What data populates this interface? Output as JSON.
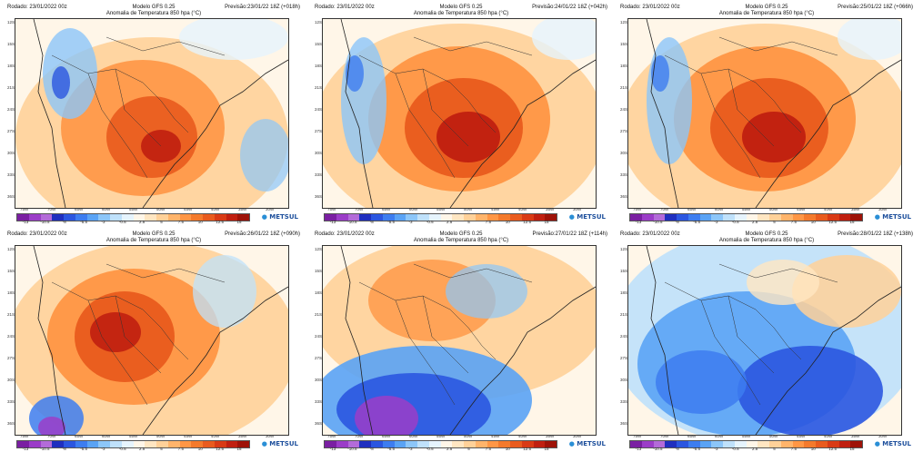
{
  "header": {
    "rodado": "Rodado: 23/01/2022 00z",
    "modelo": "Modelo GFS 0.25",
    "title": "Anomalia de Temperatura 850 hpa (°C)"
  },
  "panels": [
    {
      "previsao": "Previsão:23/01/22 18Z (+018h)",
      "state": "warm-center"
    },
    {
      "previsao": "Previsão:24/01/22 18Z (+042h)",
      "state": "warm-peak"
    },
    {
      "previsao": "Previsão:25/01/22 18Z (+066h)",
      "state": "warm-peak"
    },
    {
      "previsao": "Previsão:26/01/22 18Z (+090h)",
      "state": "warm-west"
    },
    {
      "previsao": "Previsão:27/01/22 18Z (+114h)",
      "state": "cold-south"
    },
    {
      "previsao": "Previsão:28/01/22 18Z (+138h)",
      "state": "cold-broad"
    }
  ],
  "lat_labels": [
    "12S",
    "15S",
    "18S",
    "21S",
    "24S",
    "27S",
    "30S",
    "33S",
    "36S"
  ],
  "lon_labels": [
    "75W",
    "70W",
    "65W",
    "60W",
    "55W",
    "50W",
    "45W",
    "40W",
    "35W",
    "30W"
  ],
  "colorbar": {
    "ticks": [
      "-13",
      "-10.5",
      "-8",
      "-5.5",
      "-3",
      "-0.5",
      "2.5",
      "5",
      "7.5",
      "10",
      "12.5",
      "15"
    ],
    "colors": [
      "#7a1fa2",
      "#9b3dc8",
      "#b36bd9",
      "#1f2fbf",
      "#2b56e0",
      "#3d7df0",
      "#5aa3f5",
      "#8cc6f9",
      "#bfe1fb",
      "#e6f4fd",
      "#fff6e8",
      "#ffe6c2",
      "#ffd199",
      "#ffb46b",
      "#ff9645",
      "#f47a2c",
      "#e95b1e",
      "#d93a15",
      "#c01f10",
      "#9e1208"
    ]
  },
  "logo": {
    "text": "METSUL"
  }
}
